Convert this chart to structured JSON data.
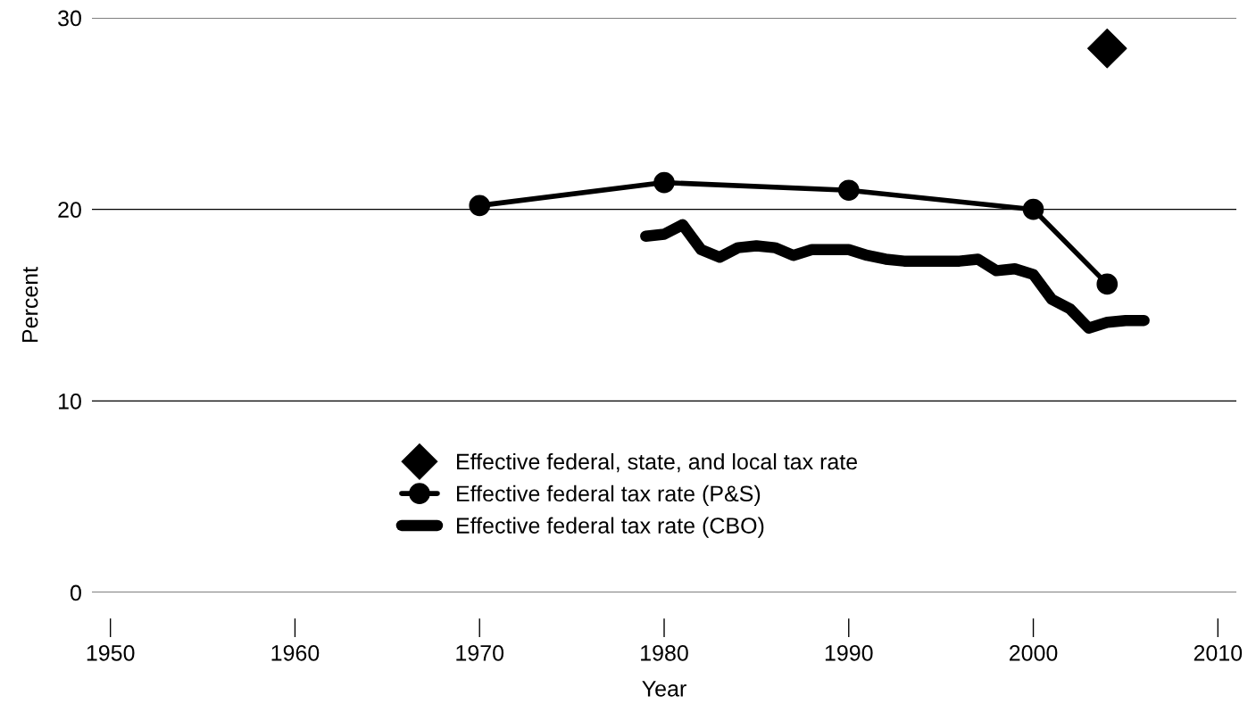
{
  "chart_data": {
    "type": "line",
    "xlabel": "Year",
    "ylabel": "Percent",
    "xlim": [
      1949,
      2011
    ],
    "xticks": [
      1950,
      1960,
      1970,
      1980,
      1990,
      2000,
      2010
    ],
    "ylim": [
      0,
      30
    ],
    "yticks": [
      0,
      10,
      20,
      30
    ],
    "grid": "y",
    "legend": "bottom",
    "series": [
      {
        "name": "Effective federal, state, and local tax rate",
        "type": "scatter",
        "marker": "diamond",
        "color": "#000000",
        "x": [
          2004
        ],
        "values": [
          28.4
        ]
      },
      {
        "name": "Effective federal tax rate (P&S)",
        "marker": "circle",
        "color": "#000000",
        "x": [
          1970,
          1980,
          1990,
          2000,
          2004
        ],
        "values": [
          20.2,
          21.4,
          21.0,
          20.0,
          16.1
        ]
      },
      {
        "name": "Effective federal tax rate (CBO)",
        "marker": "none",
        "color": "#000000",
        "x": [
          1979,
          1980,
          1981,
          1982,
          1983,
          1984,
          1985,
          1986,
          1987,
          1988,
          1989,
          1990,
          1991,
          1992,
          1993,
          1994,
          1995,
          1996,
          1997,
          1998,
          1999,
          2000,
          2001,
          2002,
          2003,
          2004,
          2005,
          2006
        ],
        "values": [
          18.6,
          18.7,
          19.2,
          17.9,
          17.5,
          18.0,
          18.1,
          18.0,
          17.6,
          17.9,
          17.9,
          17.9,
          17.6,
          17.4,
          17.3,
          17.3,
          17.3,
          17.3,
          17.4,
          16.8,
          16.9,
          16.6,
          15.3,
          14.8,
          13.8,
          14.1,
          14.2,
          14.2
        ]
      }
    ]
  }
}
